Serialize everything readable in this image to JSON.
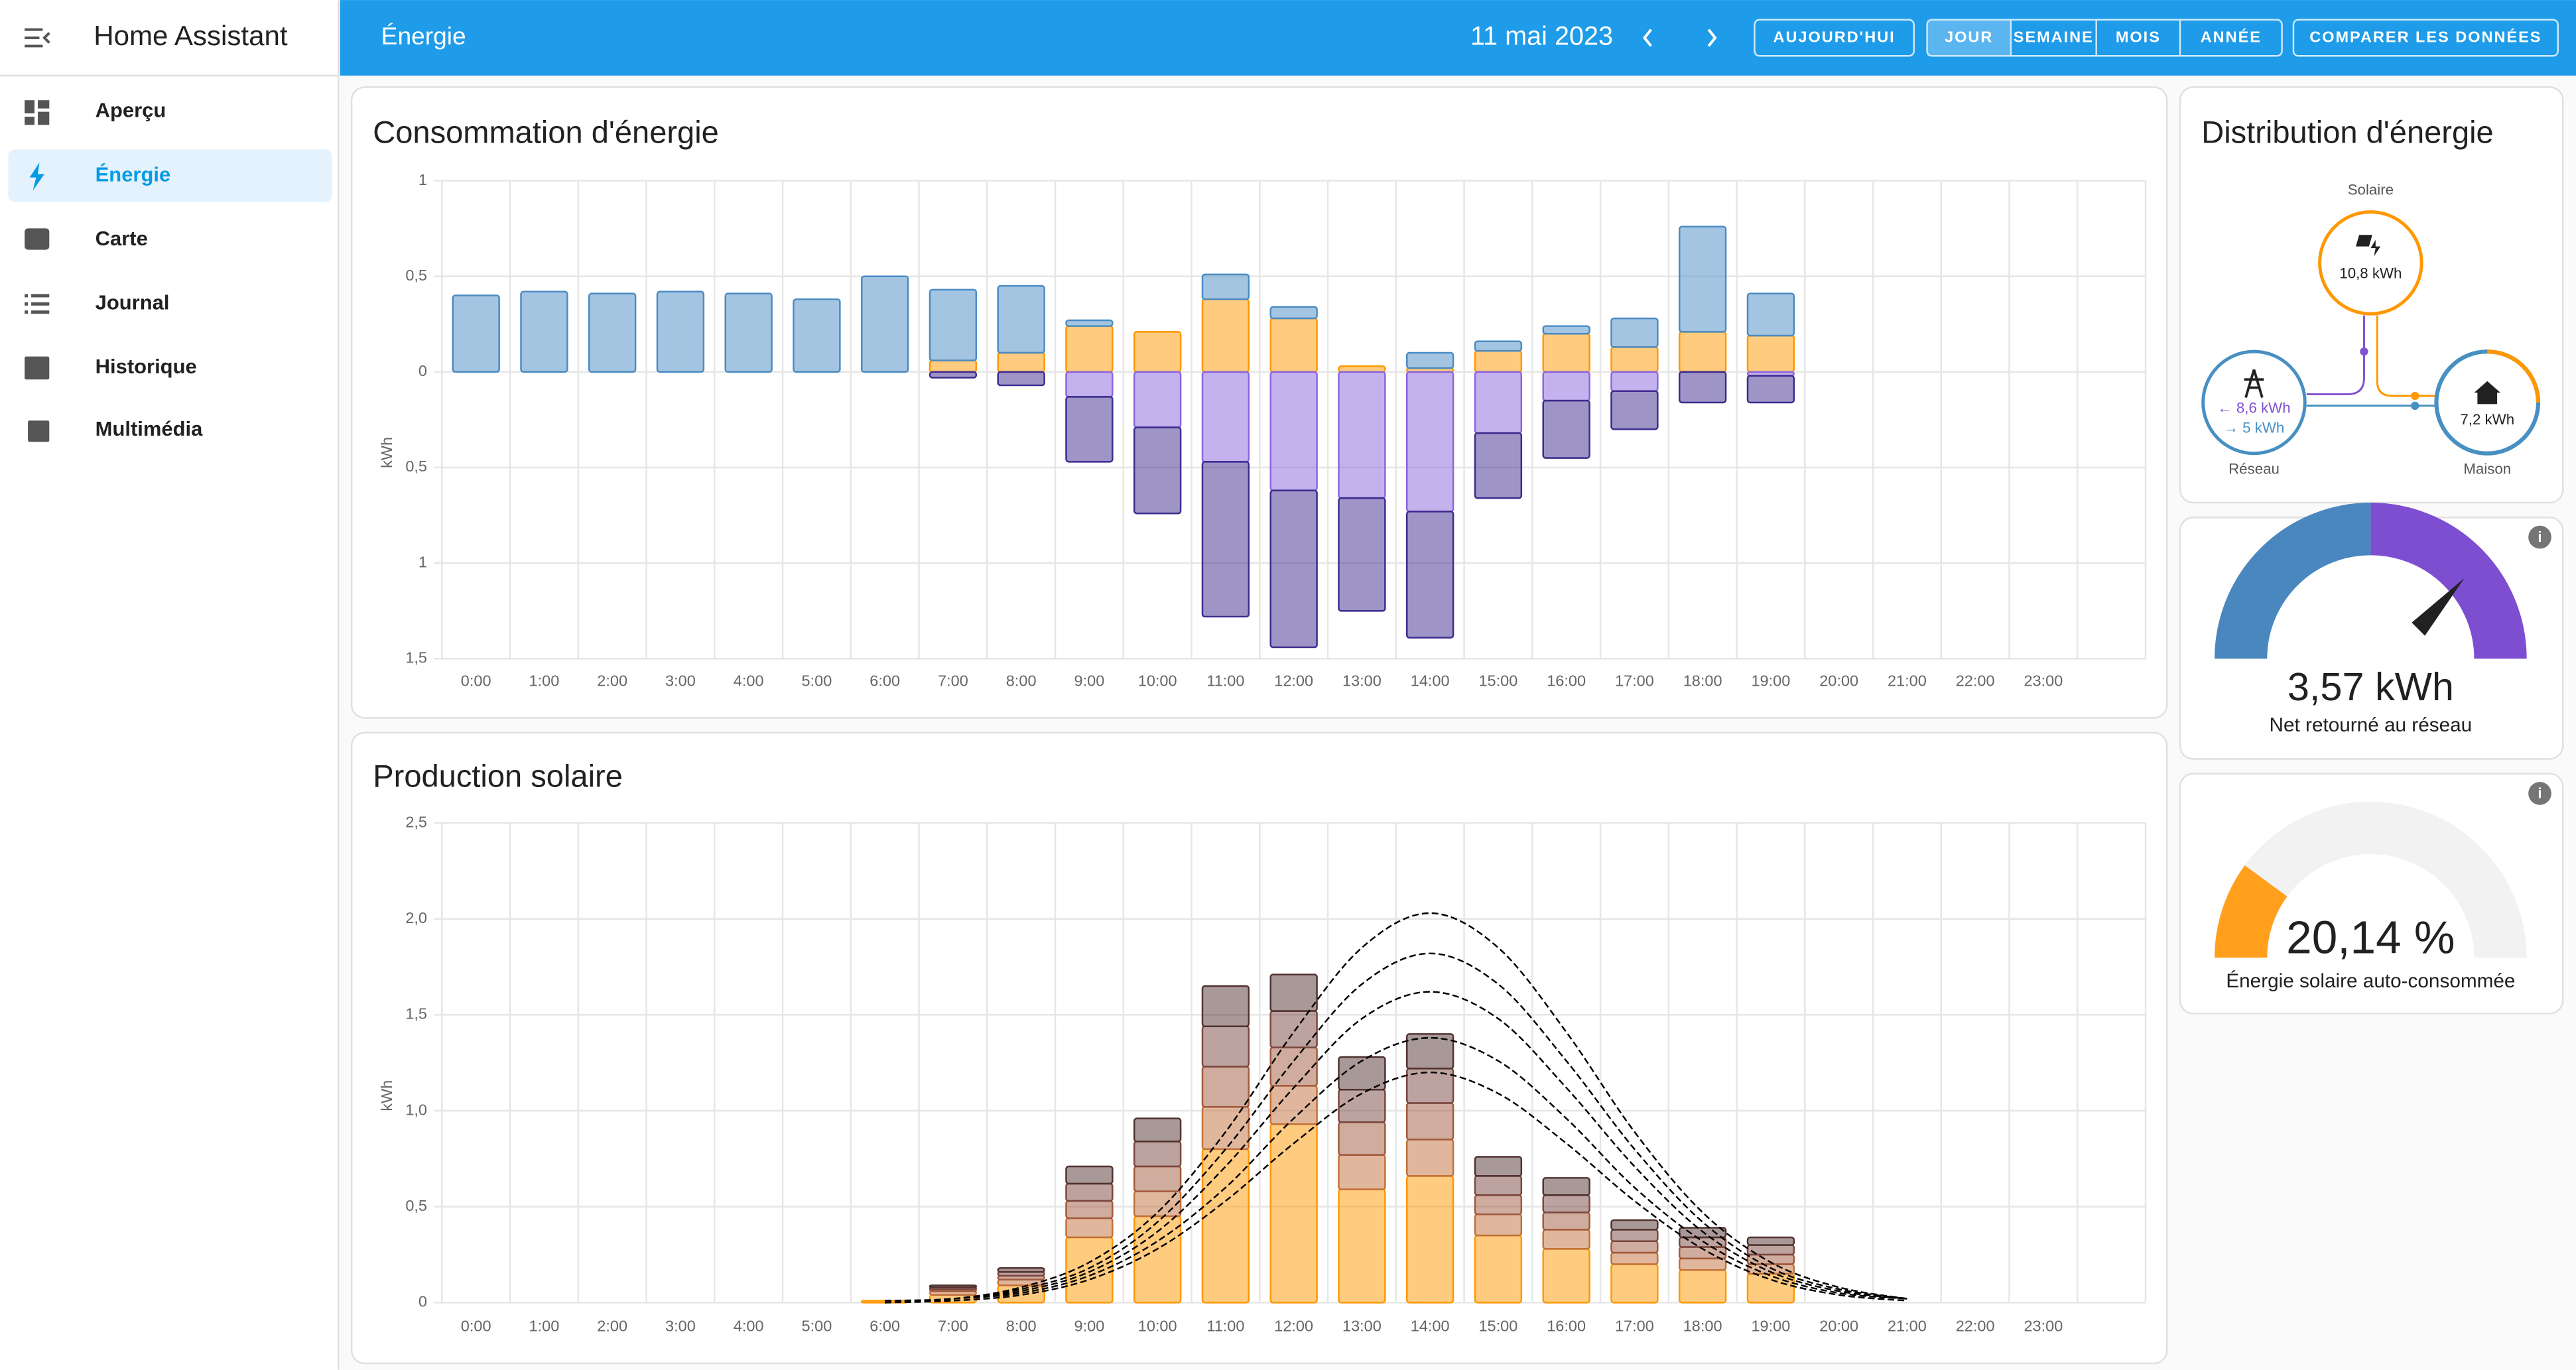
{
  "app_title": "Home Assistant",
  "sidebar": [
    "Aperçu",
    "Énergie",
    "Carte",
    "Journal",
    "Historique",
    "Multimédia"
  ],
  "header": {
    "title": "Énergie",
    "date": "11 mai 2023",
    "today": "AUJOURD'HUI",
    "periods": [
      "JOUR",
      "SEMAINE",
      "MOIS",
      "ANNÉE"
    ],
    "compare": "COMPARER LES DONNÉES"
  },
  "chart_data": [
    {
      "type": "bar",
      "title": "Consommation d'énergie",
      "y_label": "kWh",
      "categories": [
        "0:00",
        "1:00",
        "2:00",
        "3:00",
        "4:00",
        "5:00",
        "6:00",
        "7:00",
        "8:00",
        "9:00",
        "10:00",
        "11:00",
        "12:00",
        "13:00",
        "14:00",
        "15:00",
        "16:00",
        "17:00",
        "18:00",
        "19:00",
        "20:00",
        "21:00",
        "22:00",
        "23:00"
      ],
      "ylim": [
        -1.5,
        1
      ],
      "yticks": [
        1,
        {
          "value": 0.5,
          "label": "0,5"
        },
        0,
        {
          "value": -0.5,
          "label": "0,5"
        },
        {
          "value": -1,
          "label": "1"
        },
        {
          "value": -1.5,
          "label": "1,5"
        }
      ],
      "grid": true,
      "series": [
        {
          "color": "#ff9800",
          "values": [
            0,
            0,
            0,
            0,
            0,
            0,
            0,
            0.06,
            0.1,
            0.24,
            0.21,
            0.38,
            0.28,
            0.03,
            0.02,
            0.11,
            0.2,
            0.13,
            0.21,
            0.19,
            null,
            null,
            null,
            null
          ]
        },
        {
          "color": "#4a8bc4",
          "values": [
            0.4,
            0.42,
            0.41,
            0.42,
            0.41,
            0.38,
            0.5,
            0.37,
            0.35,
            0.03,
            0,
            0.13,
            0.06,
            0,
            0.08,
            0.05,
            0.04,
            0.15,
            0.55,
            0.22,
            null,
            null,
            null,
            null
          ]
        },
        {
          "color": "#8a66dd",
          "values": [
            0,
            0,
            0,
            0,
            0,
            0,
            0,
            0,
            0,
            -0.13,
            -0.29,
            -0.47,
            -0.62,
            -0.66,
            -0.73,
            -0.32,
            -0.15,
            -0.1,
            0,
            -0.02,
            null,
            null,
            null,
            null
          ]
        },
        {
          "color": "#3d2b8e",
          "values": [
            0,
            0,
            0,
            0,
            0,
            0,
            0,
            -0.03,
            -0.07,
            -0.34,
            -0.45,
            -0.81,
            -0.82,
            -0.59,
            -0.66,
            -0.34,
            -0.3,
            -0.2,
            -0.16,
            -0.14,
            null,
            null,
            null,
            null
          ]
        }
      ]
    },
    {
      "type": "bar",
      "title": "Production solaire",
      "y_label": "kWh",
      "categories": [
        "0:00",
        "1:00",
        "2:00",
        "3:00",
        "4:00",
        "5:00",
        "6:00",
        "7:00",
        "8:00",
        "9:00",
        "10:00",
        "11:00",
        "12:00",
        "13:00",
        "14:00",
        "15:00",
        "16:00",
        "17:00",
        "18:00",
        "19:00",
        "20:00",
        "21:00",
        "22:00",
        "23:00"
      ],
      "ylim": [
        0,
        2.5
      ],
      "yticks": [
        0,
        {
          "value": 0.5,
          "label": "0,5"
        },
        {
          "value": 1,
          "label": "1,0"
        },
        {
          "value": 1.5,
          "label": "1,5"
        },
        {
          "value": 2,
          "label": "2,0"
        },
        {
          "value": 2.5,
          "label": "2,5"
        }
      ],
      "grid": true,
      "series": [
        {
          "color": "#ff9800",
          "values": [
            0,
            0,
            0,
            0,
            0,
            0,
            0.01,
            0.04,
            0.09,
            0.34,
            0.45,
            0.8,
            0.93,
            0.59,
            0.66,
            0.35,
            0.28,
            0.2,
            0.17,
            0.15,
            null,
            null,
            null,
            null
          ]
        },
        {
          "color": "#c2703a",
          "values": [
            0,
            0,
            0,
            0,
            0,
            0,
            0,
            0.02,
            0.03,
            0.1,
            0.13,
            0.22,
            0.2,
            0.18,
            0.19,
            0.11,
            0.1,
            0.06,
            0.06,
            0.05,
            null,
            null,
            null,
            null
          ]
        },
        {
          "color": "#a0593c",
          "values": [
            0,
            0,
            0,
            0,
            0,
            0,
            0,
            0.01,
            0.02,
            0.09,
            0.13,
            0.21,
            0.2,
            0.17,
            0.19,
            0.1,
            0.09,
            0.06,
            0.06,
            0.05,
            null,
            null,
            null,
            null
          ]
        },
        {
          "color": "#7a4740",
          "values": [
            0,
            0,
            0,
            0,
            0,
            0,
            0,
            0.01,
            0.02,
            0.09,
            0.13,
            0.21,
            0.19,
            0.17,
            0.18,
            0.1,
            0.09,
            0.06,
            0.05,
            0.05,
            null,
            null,
            null,
            null
          ]
        },
        {
          "color": "#51322f",
          "values": [
            0,
            0,
            0,
            0,
            0,
            0,
            0,
            0.01,
            0.02,
            0.09,
            0.12,
            0.21,
            0.19,
            0.17,
            0.18,
            0.1,
            0.09,
            0.05,
            0.05,
            0.04,
            null,
            null,
            null,
            null
          ]
        },
        {
          "type": "line",
          "color": "#000000",
          "values": [
            null,
            null,
            null,
            null,
            null,
            null,
            0.01,
            0.02,
            0.08,
            0.21,
            0.47,
            0.89,
            1.41,
            1.85,
            2.03,
            1.85,
            1.41,
            0.89,
            0.47,
            0.21,
            0.08,
            0.02,
            null,
            null
          ]
        },
        {
          "type": "line",
          "color": "#000000",
          "values": [
            null,
            null,
            null,
            null,
            null,
            null,
            0.01,
            0.02,
            0.07,
            0.18,
            0.42,
            0.8,
            1.26,
            1.66,
            1.82,
            1.66,
            1.26,
            0.8,
            0.42,
            0.18,
            0.07,
            0.02,
            null,
            null
          ]
        },
        {
          "type": "line",
          "color": "#000000",
          "values": [
            null,
            null,
            null,
            null,
            null,
            null,
            0.0,
            0.02,
            0.06,
            0.16,
            0.37,
            0.71,
            1.12,
            1.48,
            1.62,
            1.48,
            1.12,
            0.71,
            0.37,
            0.16,
            0.06,
            0.02,
            null,
            null
          ]
        },
        {
          "type": "line",
          "color": "#000000",
          "values": [
            null,
            null,
            null,
            null,
            null,
            null,
            0.0,
            0.02,
            0.05,
            0.14,
            0.32,
            0.6,
            0.96,
            1.26,
            1.38,
            1.26,
            0.96,
            0.6,
            0.32,
            0.14,
            0.05,
            0.02,
            null,
            null
          ]
        },
        {
          "type": "line",
          "color": "#000000",
          "values": [
            null,
            null,
            null,
            null,
            null,
            null,
            0.0,
            0.01,
            0.04,
            0.12,
            0.28,
            0.53,
            0.83,
            1.09,
            1.2,
            1.09,
            0.83,
            0.53,
            0.28,
            0.12,
            0.04,
            0.01,
            null,
            null
          ]
        }
      ]
    }
  ],
  "distribution": {
    "title": "Distribution d'énergie",
    "solar": {
      "label": "Solaire",
      "value": "10,8 kWh"
    },
    "grid": {
      "label": "Réseau",
      "from": "← 8,6 kWh",
      "to": "→ 5 kWh"
    },
    "home": {
      "label": "Maison",
      "value": "7,2 kWh"
    }
  },
  "gauges": [
    {
      "value_label": "3,57 kWh",
      "label": "Net retourné au réseau"
    },
    {
      "value": 20.14,
      "value_label": "20,14 %",
      "label": "Énergie solaire auto-consommée"
    }
  ]
}
